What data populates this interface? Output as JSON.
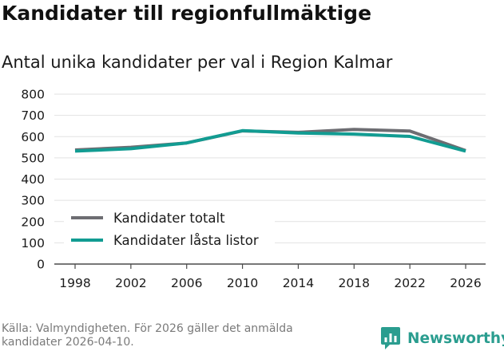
{
  "title": "Kandidater till regionfullmäktige",
  "subtitle": "Antal unika kandidater per val i Region Kalmar",
  "source": "Källa: Valmyndigheten. För 2026 gäller det anmälda kandidater 2026-04-10.",
  "brand": {
    "name": "Newsworthy",
    "icon": "newsworthy-logo-icon"
  },
  "colors": {
    "totalt": "#6d6d72",
    "lasta": "#129c92",
    "grid": "#e2e2e2",
    "axis": "#4a4a4a"
  },
  "chart_data": {
    "type": "line",
    "title": "Kandidater till regionfullmäktige",
    "subtitle": "Antal unika kandidater per val i Region Kalmar",
    "xlabel": "",
    "ylabel": "",
    "x": [
      "1998",
      "2002",
      "2006",
      "2010",
      "2014",
      "2018",
      "2022",
      "2026"
    ],
    "ylim": [
      0,
      800
    ],
    "yticks": [
      0,
      100,
      200,
      300,
      400,
      500,
      600,
      700,
      800
    ],
    "grid": true,
    "legend_position": "bottom-left",
    "series": [
      {
        "name": "Kandidater totalt",
        "values": [
          537,
          550,
          570,
          627,
          620,
          634,
          626,
          534
        ]
      },
      {
        "name": "Kandidater låsta listor",
        "values": [
          532,
          543,
          570,
          628,
          617,
          612,
          601,
          532
        ]
      }
    ]
  }
}
